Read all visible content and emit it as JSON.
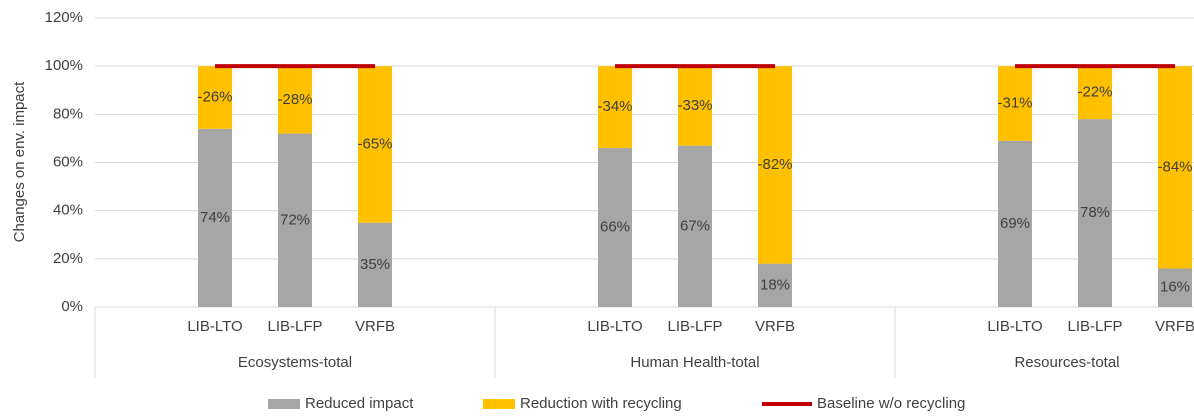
{
  "chart_data": {
    "type": "bar",
    "stacked": true,
    "y_axis_label": "Changes on env. impact",
    "groups": [
      "Ecosystems-total",
      "Human Health-total",
      "Resources-total"
    ],
    "categories": [
      null,
      "LIB-LTO",
      "LIB-LFP",
      "VRFB",
      null,
      null,
      "LIB-LTO",
      "LIB-LFP",
      "VRFB",
      null,
      null,
      "LIB-LTO",
      "LIB-LFP",
      "VRFB",
      null
    ],
    "series": [
      {
        "name": "Reduced impact",
        "color": "#a6a6a6",
        "values": [
          null,
          74,
          72,
          35,
          null,
          null,
          66,
          67,
          18,
          null,
          null,
          69,
          78,
          16,
          null
        ],
        "value_labels": [
          null,
          "74%",
          "72%",
          "35%",
          null,
          null,
          "66%",
          "67%",
          "18%",
          null,
          null,
          "69%",
          "78%",
          "16%",
          null
        ]
      },
      {
        "name": "Reduction with recycling",
        "color": "#ffc000",
        "values": [
          null,
          26,
          28,
          65,
          null,
          null,
          34,
          33,
          82,
          null,
          null,
          31,
          22,
          84,
          null
        ],
        "value_labels": [
          null,
          "-26%",
          "-28%",
          "-65%",
          null,
          null,
          "-34%",
          "-33%",
          "-82%",
          null,
          null,
          "-31%",
          "-22%",
          "-84%",
          null
        ]
      },
      {
        "name": "Baseline w/o recycling",
        "color": "#c00000",
        "kind": "line",
        "values": [
          null,
          100,
          100,
          100,
          null,
          null,
          100,
          100,
          100,
          null,
          null,
          100,
          100,
          100,
          null
        ]
      }
    ],
    "ylim": [
      0,
      120
    ],
    "yticks": [
      {
        "value": 0,
        "label": "0%"
      },
      {
        "value": 20,
        "label": "20%"
      },
      {
        "value": 40,
        "label": "40%"
      },
      {
        "value": 60,
        "label": "60%"
      },
      {
        "value": 80,
        "label": "80%"
      },
      {
        "value": 100,
        "label": "100%"
      },
      {
        "value": 120,
        "label": "120%"
      }
    ],
    "grid": true,
    "legend": "bottom"
  }
}
